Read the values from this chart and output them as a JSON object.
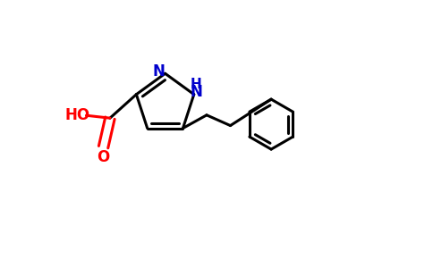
{
  "background_color": "#ffffff",
  "bond_color": "#000000",
  "n_color": "#0000cc",
  "o_color": "#ff0000",
  "bond_width": 2.2,
  "figsize": [
    4.84,
    3.0
  ],
  "dpi": 100,
  "xlim": [
    0.0,
    1.0
  ],
  "ylim": [
    0.0,
    1.0
  ]
}
